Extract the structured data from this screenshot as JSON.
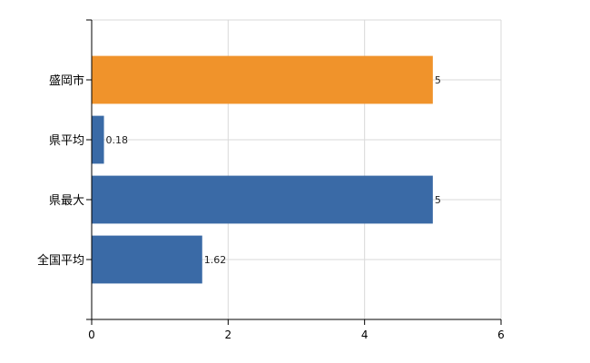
{
  "chart_data": {
    "type": "bar",
    "orientation": "horizontal",
    "categories": [
      "盛岡市",
      "県平均",
      "県最大",
      "全国平均"
    ],
    "values": [
      5,
      0.18,
      5,
      1.62
    ],
    "value_labels": [
      "5",
      "0.18",
      "5",
      "1.62"
    ],
    "bar_colors": [
      "#f0932b",
      "#3a6aa6",
      "#3a6aa6",
      "#3a6aa6"
    ],
    "title": "",
    "xlabel": "",
    "ylabel": "",
    "xlim": [
      0,
      6
    ],
    "x_ticks": [
      0,
      2,
      4,
      6
    ],
    "x_tick_labels": [
      "0",
      "2",
      "4",
      "6"
    ],
    "grid": true,
    "legend": false
  }
}
